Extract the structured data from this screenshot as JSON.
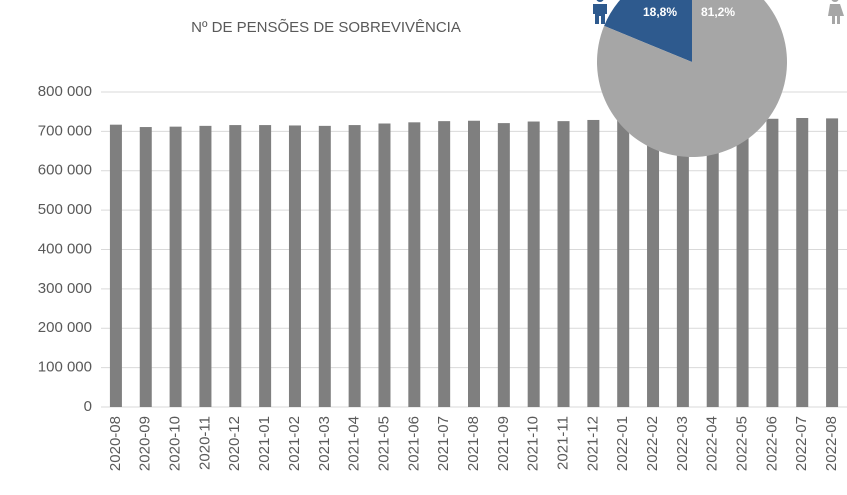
{
  "chart_data": [
    {
      "type": "bar",
      "title": "Nº DE PENSÕES DE SOBREVIVÊNCIA",
      "categories": [
        "2020-08",
        "2020-09",
        "2020-10",
        "2020-11",
        "2020-12",
        "2021-01",
        "2021-02",
        "2021-03",
        "2021-04",
        "2021-05",
        "2021-06",
        "2021-07",
        "2021-08",
        "2021-09",
        "2021-10",
        "2021-11",
        "2021-12",
        "2022-01",
        "2022-02",
        "2022-03",
        "2022-04",
        "2022-05",
        "2022-06",
        "2022-07",
        "2022-08"
      ],
      "values": [
        717000,
        711000,
        712000,
        714000,
        716000,
        716000,
        715000,
        714000,
        716000,
        720000,
        723000,
        726000,
        727000,
        721000,
        725000,
        726000,
        729000,
        728000,
        728000,
        729000,
        731000,
        732000,
        732000,
        734000,
        733000
      ],
      "color": "#7f7f7f",
      "ylim": [
        0,
        800000
      ],
      "yticks": [
        0,
        {
          "value": 100000,
          "label": "100 000"
        },
        {
          "value": 200000,
          "label": "200 000"
        },
        {
          "value": 300000,
          "label": "300 000"
        },
        {
          "value": 400000,
          "label": "400 000"
        },
        {
          "value": 500000,
          "label": "500 000"
        },
        {
          "value": 600000,
          "label": "600 000"
        },
        {
          "value": 700000,
          "label": "700 000"
        },
        {
          "value": 800000,
          "label": "800 000"
        }
      ],
      "grid": true
    },
    {
      "type": "pie",
      "values": [
        18.8,
        81.2
      ],
      "value_labels": [
        "18,8%",
        "81,2%"
      ],
      "colors": [
        "#2e5a8e",
        "#a6a6a6"
      ]
    }
  ]
}
